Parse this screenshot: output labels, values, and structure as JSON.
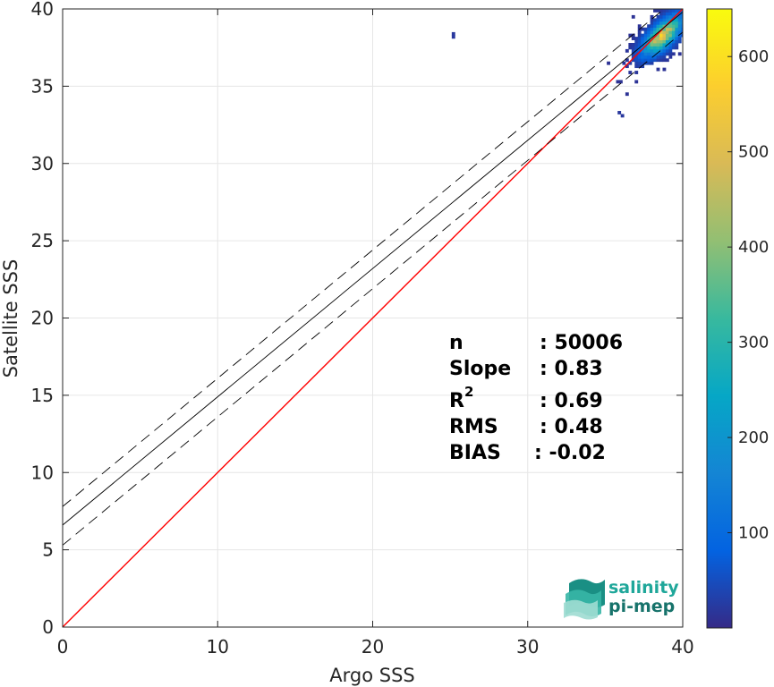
{
  "chart_data": {
    "type": "scatter",
    "subtype": "2d-density-histogram",
    "xlabel": "Argo SSS",
    "ylabel": "Satellite SSS",
    "xlim": [
      0,
      40
    ],
    "ylim": [
      0,
      40
    ],
    "xticks": [
      0,
      10,
      20,
      30,
      40
    ],
    "yticks": [
      0,
      5,
      10,
      15,
      20,
      25,
      30,
      35,
      40
    ],
    "grid": true,
    "lines": [
      {
        "name": "one-to-one",
        "color": "#ff0000",
        "style": "solid",
        "points": [
          [
            0,
            0
          ],
          [
            40,
            40
          ]
        ]
      },
      {
        "name": "fit",
        "color": "#000000",
        "style": "solid",
        "points": [
          [
            0,
            6.6
          ],
          [
            40,
            39.8
          ]
        ]
      },
      {
        "name": "fit-upper",
        "color": "#000000",
        "style": "dashed",
        "points": [
          [
            0,
            7.8
          ],
          [
            40,
            41.0
          ]
        ]
      },
      {
        "name": "fit-lower",
        "color": "#000000",
        "style": "dashed",
        "points": [
          [
            0,
            5.3
          ],
          [
            40,
            38.5
          ]
        ]
      }
    ],
    "density": {
      "center": [
        38.6,
        38.2
      ],
      "peak_count": 650,
      "x_range": [
        34.5,
        40
      ],
      "y_range": [
        33.2,
        40
      ]
    },
    "colorbar": {
      "min": 0,
      "max": 650,
      "ticks": [
        100,
        200,
        300,
        400,
        500,
        600
      ],
      "colormap": "parula",
      "colors": [
        "#352a87",
        "#0363e1",
        "#1485d4",
        "#06a7c6",
        "#38b99e",
        "#92bf73",
        "#d9ba56",
        "#fcce2e",
        "#f9fb0e"
      ]
    },
    "stats": [
      {
        "label": "n",
        "value": ": 50006"
      },
      {
        "label": "Slope",
        "value": ": 0.83"
      },
      {
        "label": "R",
        "sup": "2",
        "value": ": 0.69"
      },
      {
        "label": "RMS",
        "value": ": 0.48"
      },
      {
        "label": "BIAS",
        "value": ": -0.02"
      }
    ]
  },
  "logo": {
    "line1": "salinity",
    "line2": "pi-mep",
    "color1": "#1fa79a",
    "color2": "#17736b"
  }
}
